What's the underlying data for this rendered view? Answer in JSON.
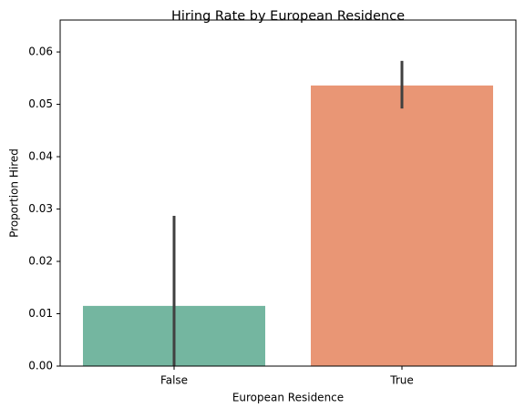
{
  "chart_data": {
    "type": "bar",
    "title": "Hiring Rate by European Residence",
    "x_label": "European Residence",
    "y_label": "Proportion Hired",
    "categories": [
      "False",
      "True"
    ],
    "values": [
      0.0115,
      0.0536
    ],
    "ci_low": [
      0.0,
      0.0492
    ],
    "ci_high": [
      0.0287,
      0.0583
    ],
    "colors": [
      "#74b6a0",
      "#e99675"
    ],
    "error_color": "#404040",
    "ylim": [
      0,
      0.0661
    ],
    "yticks": [
      {
        "value": 0,
        "label": "0.00"
      },
      {
        "value": 0.01,
        "label": "0.01"
      },
      {
        "value": 0.02,
        "label": "0.02"
      },
      {
        "value": 0.03,
        "label": "0.03"
      },
      {
        "value": 0.04,
        "label": "0.04"
      },
      {
        "value": 0.05,
        "label": "0.05"
      },
      {
        "value": 0.06,
        "label": "0.06"
      }
    ],
    "grid": false
  }
}
